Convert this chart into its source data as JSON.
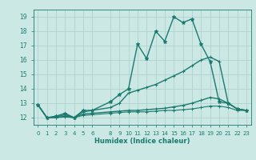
{
  "xlabel": "Humidex (Indice chaleur)",
  "bg_color": "#cce8e4",
  "grid_color": "#aacfcb",
  "line_color": "#1a7a6e",
  "x_ticks": [
    0,
    1,
    2,
    3,
    4,
    5,
    6,
    8,
    9,
    10,
    11,
    12,
    13,
    14,
    15,
    16,
    17,
    18,
    19,
    20,
    21,
    22,
    23
  ],
  "ylim": [
    11.5,
    19.5
  ],
  "xlim": [
    -0.5,
    23.5
  ],
  "yticks": [
    12,
    13,
    14,
    15,
    16,
    17,
    18,
    19
  ],
  "series": [
    {
      "x": [
        0,
        1,
        2,
        3,
        4,
        5,
        6,
        8,
        9,
        10,
        11,
        12,
        13,
        14,
        15,
        16,
        17,
        18,
        19,
        20,
        21,
        22,
        23
      ],
      "y": [
        12.9,
        12.0,
        12.1,
        12.3,
        12.0,
        12.5,
        12.5,
        13.1,
        13.6,
        14.0,
        17.1,
        16.1,
        18.0,
        17.3,
        19.0,
        18.6,
        18.85,
        17.1,
        15.9,
        13.1,
        13.0,
        12.6,
        12.5
      ],
      "marker": "*",
      "linewidth": 1.0,
      "markersize": 3.5
    },
    {
      "x": [
        0,
        1,
        2,
        3,
        4,
        5,
        6,
        8,
        9,
        10,
        11,
        12,
        13,
        14,
        15,
        16,
        17,
        18,
        19,
        20,
        21,
        22,
        23
      ],
      "y": [
        12.9,
        12.0,
        12.05,
        12.2,
        12.0,
        12.4,
        12.5,
        12.7,
        13.0,
        13.7,
        13.9,
        14.1,
        14.3,
        14.6,
        14.9,
        15.2,
        15.6,
        16.0,
        16.2,
        15.9,
        13.0,
        12.6,
        12.5
      ],
      "marker": "+",
      "linewidth": 1.0,
      "markersize": 3.5
    },
    {
      "x": [
        0,
        1,
        2,
        3,
        4,
        5,
        6,
        8,
        9,
        10,
        11,
        12,
        13,
        14,
        15,
        16,
        17,
        18,
        19,
        20,
        21,
        22,
        23
      ],
      "y": [
        12.9,
        12.0,
        12.0,
        12.1,
        12.0,
        12.25,
        12.3,
        12.4,
        12.45,
        12.5,
        12.5,
        12.55,
        12.6,
        12.65,
        12.75,
        12.85,
        13.0,
        13.2,
        13.4,
        13.3,
        13.0,
        12.6,
        12.5
      ],
      "marker": "+",
      "linewidth": 1.0,
      "markersize": 3.0
    },
    {
      "x": [
        0,
        1,
        2,
        3,
        4,
        5,
        6,
        8,
        9,
        10,
        11,
        12,
        13,
        14,
        15,
        16,
        17,
        18,
        19,
        20,
        21,
        22,
        23
      ],
      "y": [
        12.9,
        12.0,
        12.0,
        12.05,
        12.0,
        12.15,
        12.2,
        12.3,
        12.35,
        12.4,
        12.4,
        12.4,
        12.45,
        12.5,
        12.5,
        12.55,
        12.6,
        12.7,
        12.8,
        12.8,
        12.7,
        12.5,
        12.5
      ],
      "marker": "+",
      "linewidth": 0.8,
      "markersize": 2.5
    }
  ]
}
